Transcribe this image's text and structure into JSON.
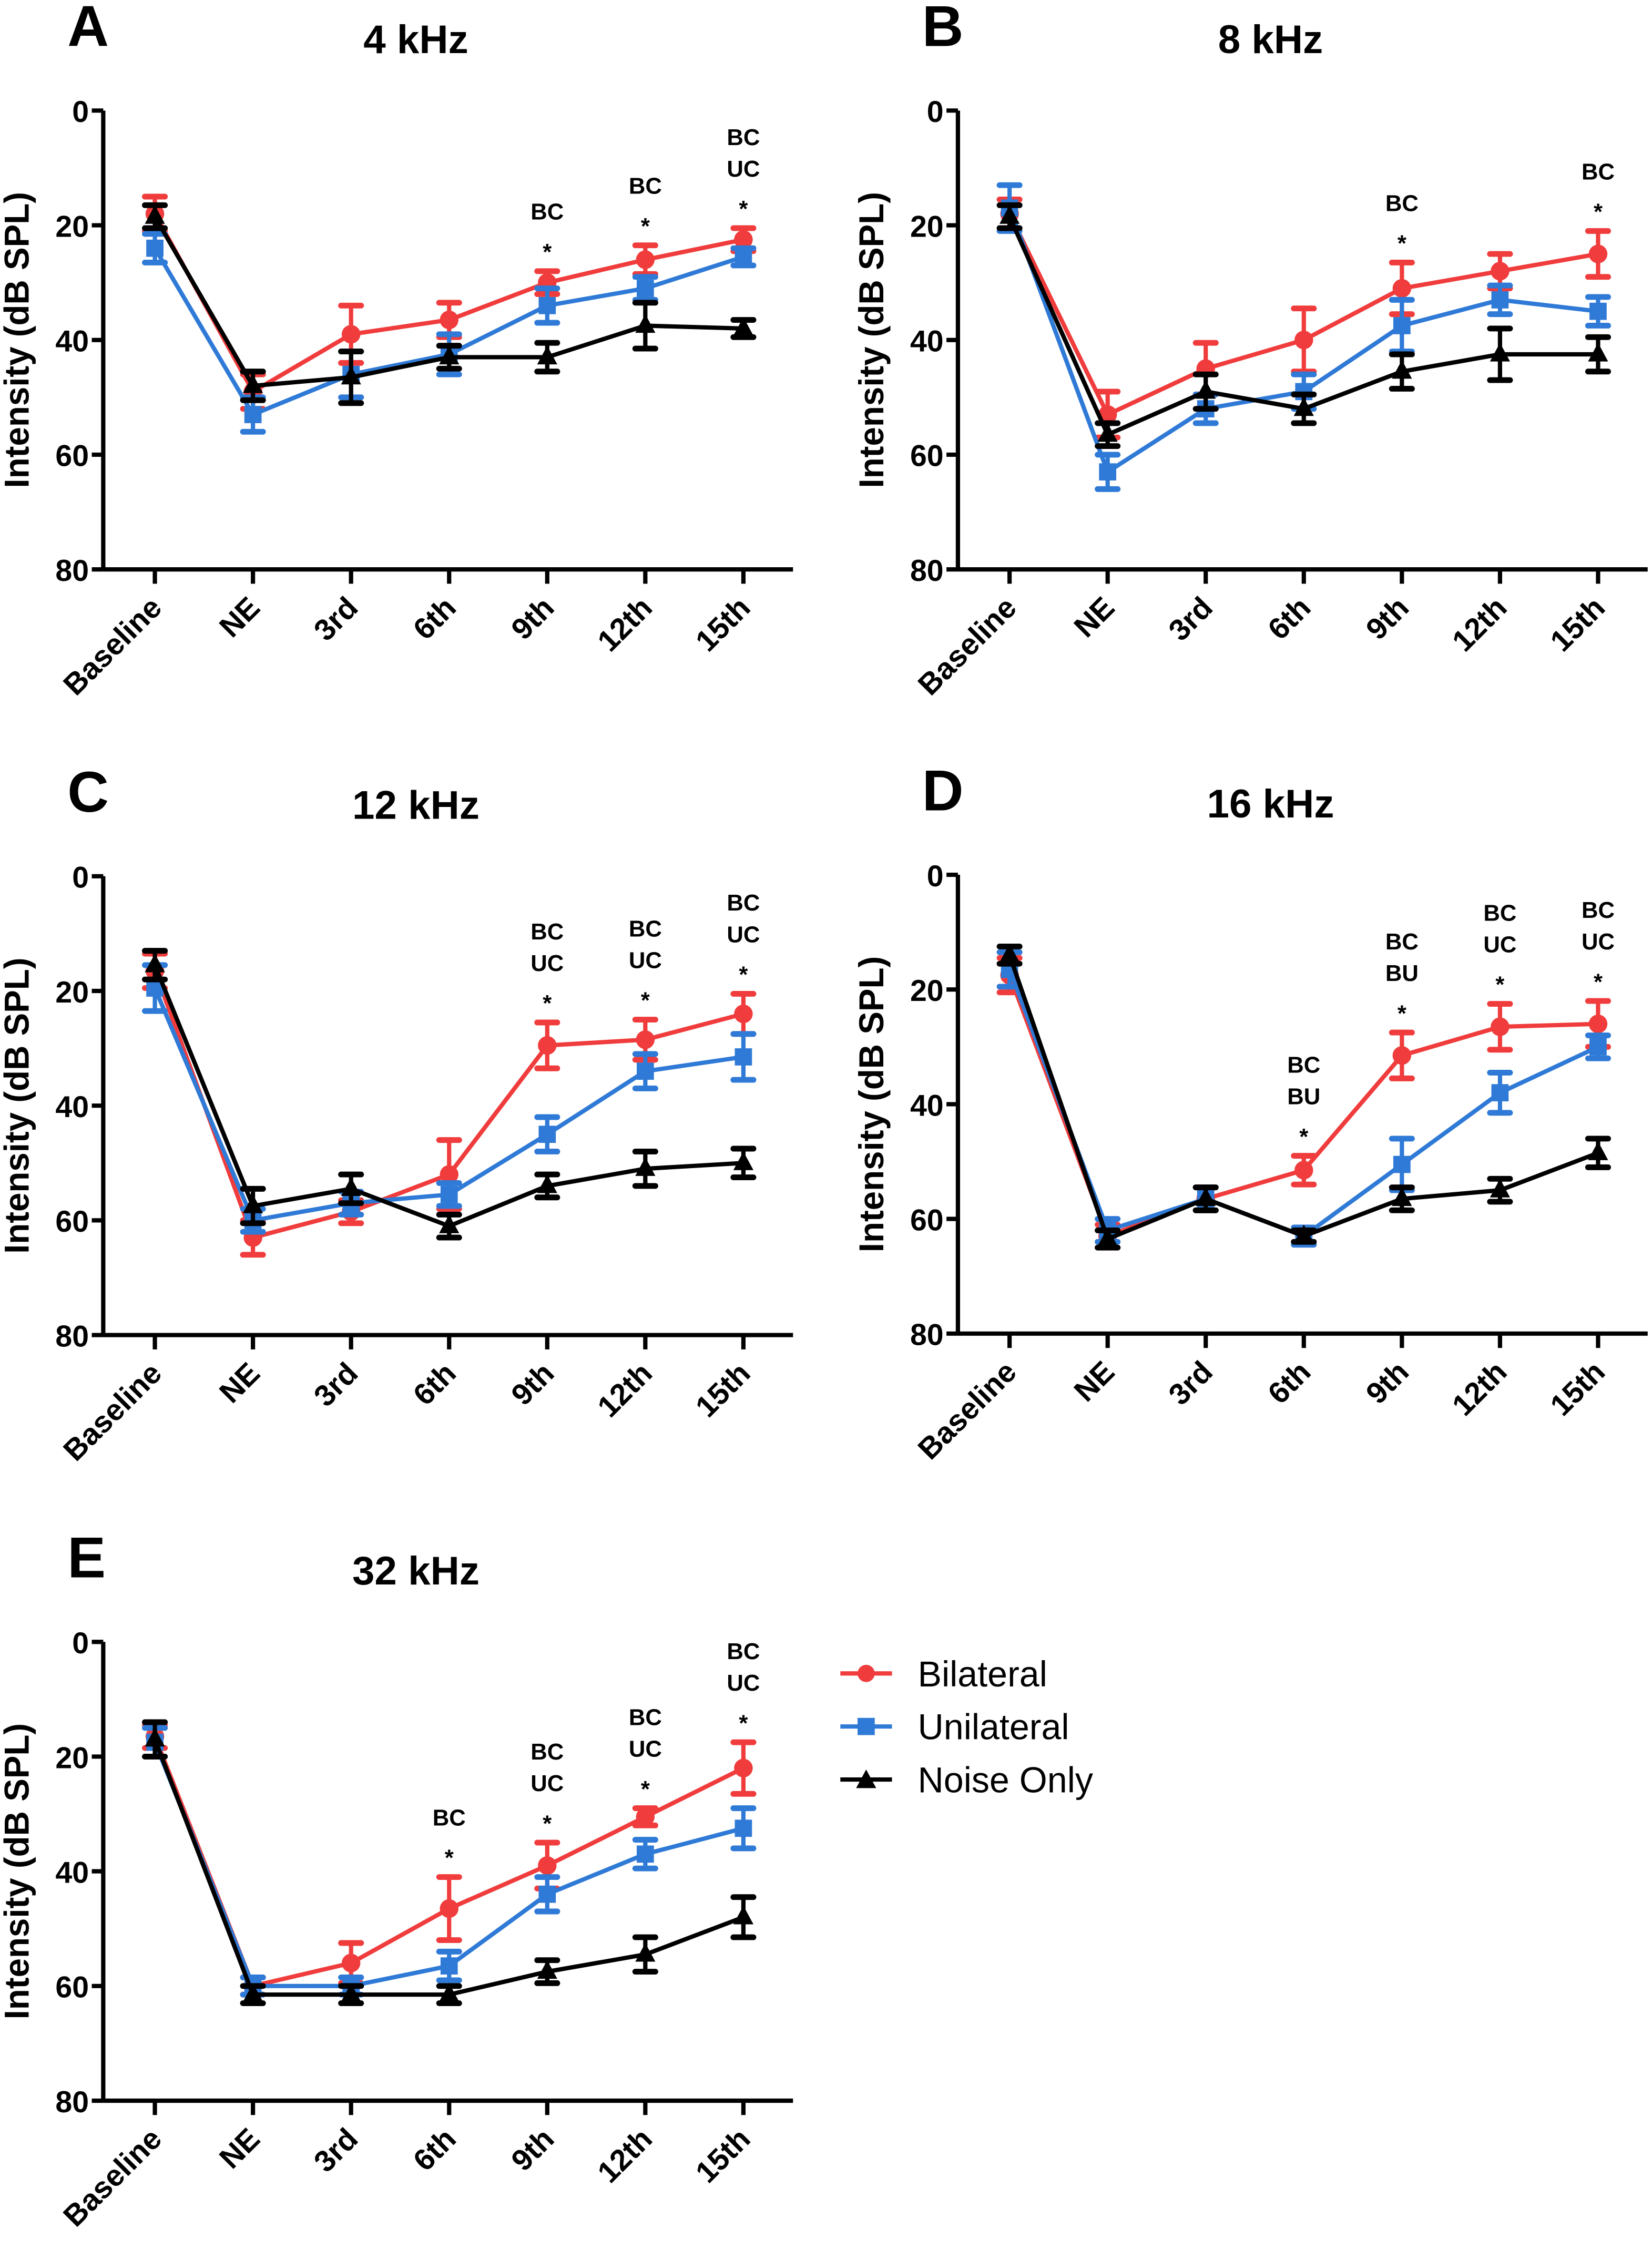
{
  "colors": {
    "Bilateral": "#f03c3c",
    "Unilateral": "#2f7ad6",
    "Noise Only": "#000000"
  },
  "legend": [
    "Bilateral",
    "Unilateral",
    "Noise Only"
  ],
  "legend_placement": "right of panel E",
  "chart_data": [
    {
      "panel": "A",
      "type": "line",
      "title": "4 kHz",
      "ylabel": "Intensity (dB SPL)",
      "ylim": [
        0,
        80
      ],
      "y_inverted": true,
      "yticks": [
        0,
        20,
        40,
        60,
        80
      ],
      "categories": [
        "Baseline",
        "NE",
        "3rd",
        "6th",
        "9th",
        "12th",
        "15th"
      ],
      "series": [
        {
          "name": "Bilateral",
          "marker": "circle",
          "values": [
            18,
            49,
            39,
            36.5,
            30,
            26,
            22.5
          ],
          "err": [
            3,
            3,
            5,
            3,
            2,
            2.5,
            2
          ]
        },
        {
          "name": "Unilateral",
          "marker": "square",
          "values": [
            24,
            53,
            46,
            42.5,
            34,
            31,
            25.5
          ],
          "err": [
            2.5,
            3,
            4,
            3.5,
            3,
            2,
            1.5
          ]
        },
        {
          "name": "Noise Only",
          "marker": "triangle",
          "values": [
            18.5,
            48,
            46.5,
            43,
            43,
            37.5,
            38
          ],
          "err": [
            2,
            2.5,
            4.5,
            2,
            2.5,
            4,
            1.5
          ]
        }
      ],
      "annotations": [
        {
          "category": "9th",
          "lines": [
            "BC",
            "*"
          ]
        },
        {
          "category": "12th",
          "lines": [
            "BC",
            "*"
          ]
        },
        {
          "category": "15th",
          "lines": [
            "BC",
            "UC",
            "*"
          ]
        }
      ]
    },
    {
      "panel": "B",
      "type": "line",
      "title": "8 kHz",
      "ylabel": "Intensity (dB SPL)",
      "ylim": [
        0,
        80
      ],
      "y_inverted": true,
      "yticks": [
        0,
        20,
        40,
        60,
        80
      ],
      "categories": [
        "Baseline",
        "NE",
        "3rd",
        "6th",
        "9th",
        "12th",
        "15th"
      ],
      "series": [
        {
          "name": "Bilateral",
          "marker": "circle",
          "values": [
            18,
            53,
            45,
            40,
            31,
            28,
            25
          ],
          "err": [
            2.5,
            4,
            4.5,
            5.5,
            4.5,
            3,
            4
          ]
        },
        {
          "name": "Unilateral",
          "marker": "square",
          "values": [
            17,
            63,
            52,
            49,
            37.5,
            33,
            35
          ],
          "err": [
            4,
            3,
            2.5,
            3,
            4.5,
            2.5,
            2.5
          ]
        },
        {
          "name": "Noise Only",
          "marker": "triangle",
          "values": [
            18.5,
            56.5,
            49,
            52,
            45.5,
            42.5,
            42.5
          ],
          "err": [
            2,
            2,
            3,
            2.5,
            3,
            4.5,
            3
          ]
        }
      ],
      "annotations": [
        {
          "category": "9th",
          "lines": [
            "BC",
            "*"
          ]
        },
        {
          "category": "15th",
          "lines": [
            "BC",
            "*"
          ]
        }
      ]
    },
    {
      "panel": "C",
      "type": "line",
      "title": "12 kHz",
      "ylabel": "Intensity (dB SPL)",
      "ylim": [
        0,
        80
      ],
      "y_inverted": true,
      "yticks": [
        0,
        20,
        40,
        60,
        80
      ],
      "categories": [
        "Baseline",
        "NE",
        "3rd",
        "6th",
        "9th",
        "12th",
        "15th"
      ],
      "series": [
        {
          "name": "Bilateral",
          "marker": "circle",
          "values": [
            16.5,
            63,
            58.5,
            52,
            29.5,
            28.5,
            24
          ],
          "err": [
            3,
            3,
            2,
            6,
            4,
            3.5,
            3.5
          ]
        },
        {
          "name": "Unilateral",
          "marker": "square",
          "values": [
            19.5,
            60,
            57,
            55.5,
            45,
            34,
            31.5
          ],
          "err": [
            4,
            2,
            2,
            2,
            3,
            3,
            4
          ]
        },
        {
          "name": "Noise Only",
          "marker": "triangle",
          "values": [
            15.5,
            57.5,
            54.5,
            61,
            54,
            51,
            50
          ],
          "err": [
            2.5,
            3,
            2.5,
            2,
            2,
            3,
            2.5
          ]
        }
      ],
      "annotations": [
        {
          "category": "9th",
          "lines": [
            "BC",
            "UC",
            "*"
          ]
        },
        {
          "category": "12th",
          "lines": [
            "BC",
            "UC",
            "*"
          ]
        },
        {
          "category": "15th",
          "lines": [
            "BC",
            "UC",
            "*"
          ]
        }
      ]
    },
    {
      "panel": "D",
      "type": "line",
      "title": "16 kHz",
      "ylabel": "Intensity (dB SPL)",
      "ylim": [
        0,
        80
      ],
      "y_inverted": true,
      "yticks": [
        0,
        20,
        40,
        60,
        80
      ],
      "categories": [
        "Baseline",
        "NE",
        "3rd",
        "6th",
        "9th",
        "12th",
        "15th"
      ],
      "series": [
        {
          "name": "Bilateral",
          "marker": "circle",
          "values": [
            17.5,
            63,
            56.5,
            51.5,
            31.5,
            26.5,
            26
          ],
          "err": [
            3,
            2,
            2,
            2.5,
            4,
            4,
            4
          ]
        },
        {
          "name": "Unilateral",
          "marker": "square",
          "values": [
            16.5,
            62,
            56.5,
            63,
            50.5,
            38,
            30
          ],
          "err": [
            3,
            2,
            2,
            1.5,
            4.5,
            3.5,
            2
          ]
        },
        {
          "name": "Noise Only",
          "marker": "triangle",
          "values": [
            14,
            63.5,
            56.5,
            63,
            56.5,
            55,
            48.5
          ],
          "err": [
            1.5,
            1.5,
            2,
            1,
            2,
            2,
            2.5
          ]
        }
      ],
      "annotations": [
        {
          "category": "6th",
          "lines": [
            "BC",
            "BU",
            "*"
          ]
        },
        {
          "category": "9th",
          "lines": [
            "BC",
            "BU",
            "*"
          ]
        },
        {
          "category": "12th",
          "lines": [
            "BC",
            "UC",
            "*"
          ]
        },
        {
          "category": "15th",
          "lines": [
            "BC",
            "UC",
            "*"
          ]
        }
      ]
    },
    {
      "panel": "E",
      "type": "line",
      "title": "32 kHz",
      "ylabel": "Intensity (dB SPL)",
      "ylim": [
        0,
        80
      ],
      "y_inverted": true,
      "yticks": [
        0,
        20,
        40,
        60,
        80
      ],
      "categories": [
        "Baseline",
        "NE",
        "3rd",
        "6th",
        "9th",
        "12th",
        "15th"
      ],
      "series": [
        {
          "name": "Bilateral",
          "marker": "circle",
          "values": [
            16.5,
            60,
            56,
            46.5,
            39,
            30.5,
            22
          ],
          "err": [
            2,
            1.5,
            3.5,
            5.5,
            4,
            1.5,
            4.5
          ]
        },
        {
          "name": "Unilateral",
          "marker": "square",
          "values": [
            17.5,
            60,
            60,
            56.5,
            44,
            37,
            32.5
          ],
          "err": [
            2.5,
            1.5,
            1.5,
            2.5,
            3,
            2.5,
            3.5
          ]
        },
        {
          "name": "Noise Only",
          "marker": "triangle",
          "values": [
            17,
            61.5,
            61.5,
            61.5,
            57.5,
            54.5,
            48
          ],
          "err": [
            3,
            1.5,
            1.5,
            1.5,
            2,
            3,
            3.5
          ]
        }
      ],
      "annotations": [
        {
          "category": "6th",
          "lines": [
            "BC",
            "*"
          ]
        },
        {
          "category": "9th",
          "lines": [
            "BC",
            "UC",
            "*"
          ]
        },
        {
          "category": "12th",
          "lines": [
            "BC",
            "UC",
            "*"
          ]
        },
        {
          "category": "15th",
          "lines": [
            "BC",
            "UC",
            "*"
          ]
        }
      ]
    }
  ]
}
